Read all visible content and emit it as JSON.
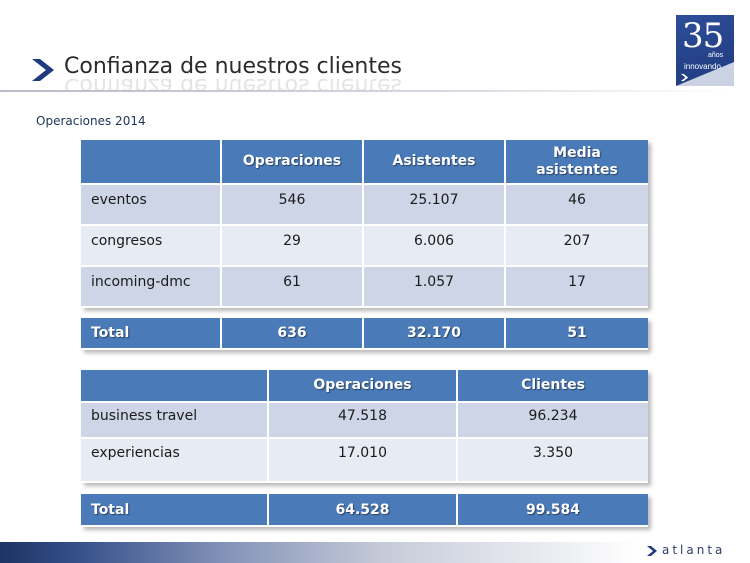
{
  "header": {
    "title": "Confianza de nuestros clientes",
    "subtitle": "Operaciones 2014"
  },
  "badge": {
    "number": "35",
    "line1": "años",
    "line2": "innovando"
  },
  "table1": {
    "headers": [
      "",
      "Operaciones",
      "Asistentes",
      "Media asistentes"
    ],
    "rows": [
      {
        "label": "eventos",
        "operaciones": "546",
        "asistentes": "25.107",
        "media": "46"
      },
      {
        "label": "congresos",
        "operaciones": "29",
        "asistentes": "6.006",
        "media": "207"
      },
      {
        "label": "incoming-dmc",
        "operaciones": "61",
        "asistentes": "1.057",
        "media": "17"
      }
    ],
    "total": {
      "label": "Total",
      "operaciones": "636",
      "asistentes": "32.170",
      "media": "51"
    }
  },
  "table2": {
    "headers": [
      "",
      "Operaciones",
      "Clientes"
    ],
    "rows": [
      {
        "label": "business travel",
        "operaciones": "47.518",
        "clientes": "96.234"
      },
      {
        "label": "experiencias",
        "operaciones": "17.010",
        "clientes": "3.350"
      }
    ],
    "total": {
      "label": "Total",
      "operaciones": "64.528",
      "clientes": "99.584"
    }
  },
  "footer": {
    "brand": "atlanta"
  },
  "colors": {
    "header_blue": "#4a7ab8",
    "row_dark": "#cdd5e7",
    "row_light": "#e7ebf4",
    "brand_navy": "#1f3a7f"
  },
  "icons": {
    "title_marker": "chevron-right-icon",
    "footer_marker": "chevron-right-icon"
  }
}
